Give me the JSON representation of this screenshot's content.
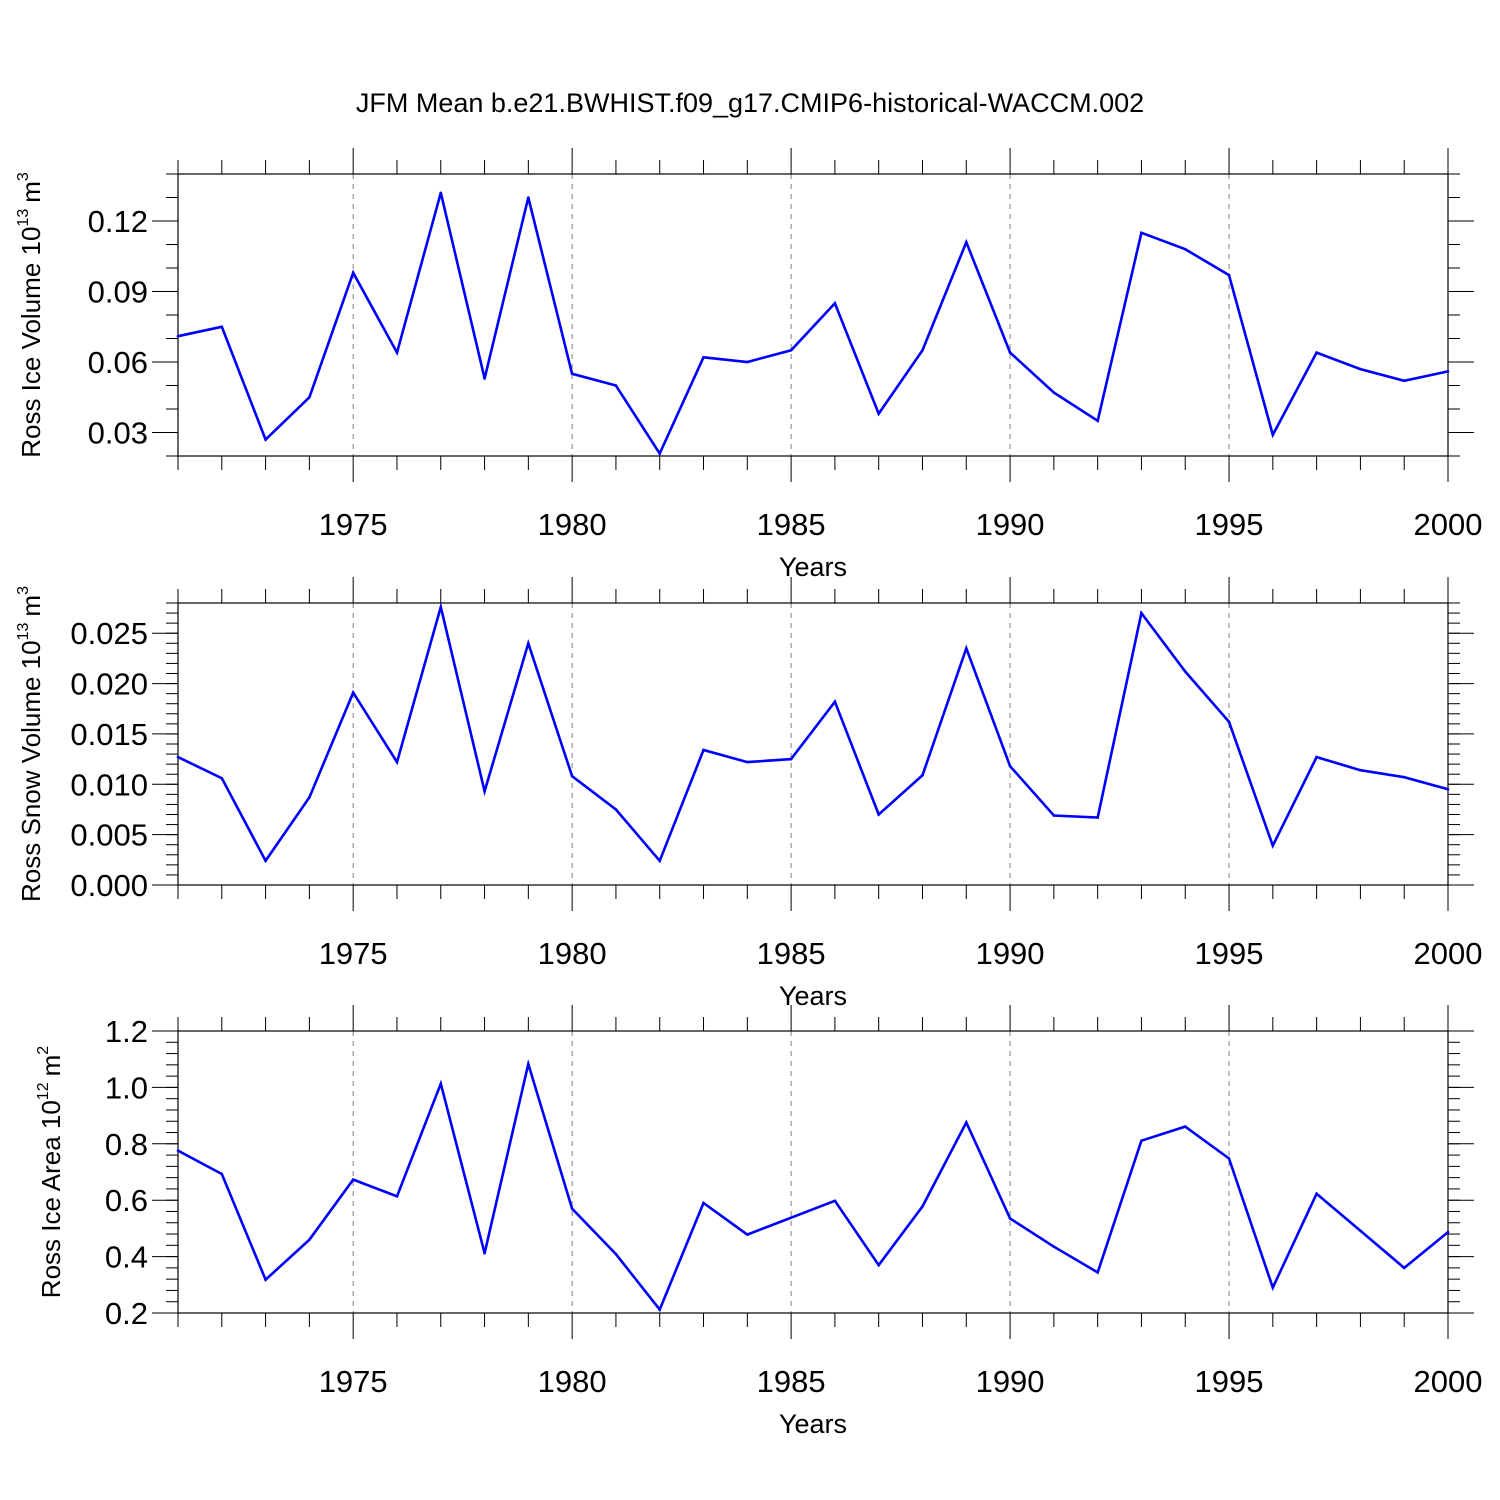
{
  "title": "JFM Mean b.e21.BWHIST.f09_g17.CMIP6-historical-WACCM.002",
  "colors": {
    "line": "#0000ff",
    "frame": "#000000",
    "grid": "#808080"
  },
  "chart_data": [
    {
      "type": "line",
      "ylabel_text": "Ross Ice Volume 10",
      "ylabel_exponent": "13",
      "ylabel_unit": "m",
      "ylabel_unit_exponent": "3",
      "xlabel": "Years",
      "xlim": [
        1971,
        2000
      ],
      "ylim": [
        0.02,
        0.14
      ],
      "yticks": [
        0.03,
        0.06,
        0.09,
        0.12
      ],
      "ytick_labels": [
        "0.03",
        "0.06",
        "0.09",
        "0.12"
      ],
      "yminor_step": 0.01,
      "xticks": [
        1975,
        1980,
        1985,
        1990,
        1995,
        2000
      ],
      "xtick_labels": [
        "1975",
        "1980",
        "1985",
        "1990",
        "1995",
        "2000"
      ],
      "x": [
        1971,
        1972,
        1973,
        1974,
        1975,
        1976,
        1977,
        1978,
        1979,
        1980,
        1981,
        1982,
        1983,
        1984,
        1985,
        1986,
        1987,
        1988,
        1989,
        1990,
        1991,
        1992,
        1993,
        1994,
        1995,
        1996,
        1997,
        1998,
        1999,
        2000
      ],
      "series": [
        {
          "values": [
            0.071,
            0.075,
            0.027,
            0.045,
            0.098,
            0.064,
            0.132,
            0.053,
            0.13,
            0.055,
            0.05,
            0.021,
            0.062,
            0.06,
            0.065,
            0.085,
            0.038,
            0.065,
            0.111,
            0.064,
            0.047,
            0.035,
            0.115,
            0.108,
            0.097,
            0.029,
            0.064,
            0.057,
            0.052,
            0.056
          ]
        }
      ]
    },
    {
      "type": "line",
      "ylabel_text": "Ross Snow Volume 10",
      "ylabel_exponent": "13",
      "ylabel_unit": "m",
      "ylabel_unit_exponent": "3",
      "xlabel": "Years",
      "xlim": [
        1971,
        2000
      ],
      "ylim": [
        0.0,
        0.028
      ],
      "yticks": [
        0.0,
        0.005,
        0.01,
        0.015,
        0.02,
        0.025
      ],
      "ytick_labels": [
        "0.000",
        "0.005",
        "0.010",
        "0.015",
        "0.020",
        "0.025"
      ],
      "yminor_step": 0.001,
      "xticks": [
        1975,
        1980,
        1985,
        1990,
        1995,
        2000
      ],
      "xtick_labels": [
        "1975",
        "1980",
        "1985",
        "1990",
        "1995",
        "2000"
      ],
      "x": [
        1971,
        1972,
        1973,
        1974,
        1975,
        1976,
        1977,
        1978,
        1979,
        1980,
        1981,
        1982,
        1983,
        1984,
        1985,
        1986,
        1987,
        1988,
        1989,
        1990,
        1991,
        1992,
        1993,
        1994,
        1995,
        1996,
        1997,
        1998,
        1999,
        2000
      ],
      "series": [
        {
          "values": [
            0.0127,
            0.0106,
            0.0024,
            0.0087,
            0.0191,
            0.0122,
            0.0276,
            0.0093,
            0.024,
            0.0108,
            0.0075,
            0.0024,
            0.0134,
            0.0122,
            0.0125,
            0.0182,
            0.007,
            0.0109,
            0.0235,
            0.0118,
            0.0069,
            0.0067,
            0.027,
            0.0212,
            0.0162,
            0.0039,
            0.0127,
            0.0114,
            0.0107,
            0.0095
          ]
        }
      ]
    },
    {
      "type": "line",
      "ylabel_text": "Ross Ice Area 10",
      "ylabel_exponent": "12",
      "ylabel_unit": "m",
      "ylabel_unit_exponent": "2",
      "xlabel": "Years",
      "xlim": [
        1971,
        2000
      ],
      "ylim": [
        0.2,
        1.2
      ],
      "yticks": [
        0.2,
        0.4,
        0.6,
        0.8,
        1.0,
        1.2
      ],
      "ytick_labels": [
        "0.2",
        "0.4",
        "0.6",
        "0.8",
        "1.0",
        "1.2"
      ],
      "yminor_step": 0.04,
      "xticks": [
        1975,
        1980,
        1985,
        1990,
        1995,
        2000
      ],
      "xtick_labels": [
        "1975",
        "1980",
        "1985",
        "1990",
        "1995",
        "2000"
      ],
      "x": [
        1971,
        1972,
        1973,
        1974,
        1975,
        1976,
        1977,
        1978,
        1979,
        1980,
        1981,
        1982,
        1983,
        1984,
        1985,
        1986,
        1987,
        1988,
        1989,
        1990,
        1991,
        1992,
        1993,
        1994,
        1995,
        1996,
        1997,
        1998,
        1999,
        2000
      ],
      "series": [
        {
          "values": [
            0.776,
            0.693,
            0.318,
            0.46,
            0.673,
            0.614,
            1.013,
            0.412,
            1.083,
            0.57,
            0.409,
            0.212,
            0.59,
            0.478,
            0.538,
            0.598,
            0.37,
            0.578,
            0.876,
            0.535,
            0.435,
            0.344,
            0.811,
            0.861,
            0.748,
            0.29,
            0.623,
            0.492,
            0.36,
            0.487
          ]
        }
      ]
    }
  ]
}
